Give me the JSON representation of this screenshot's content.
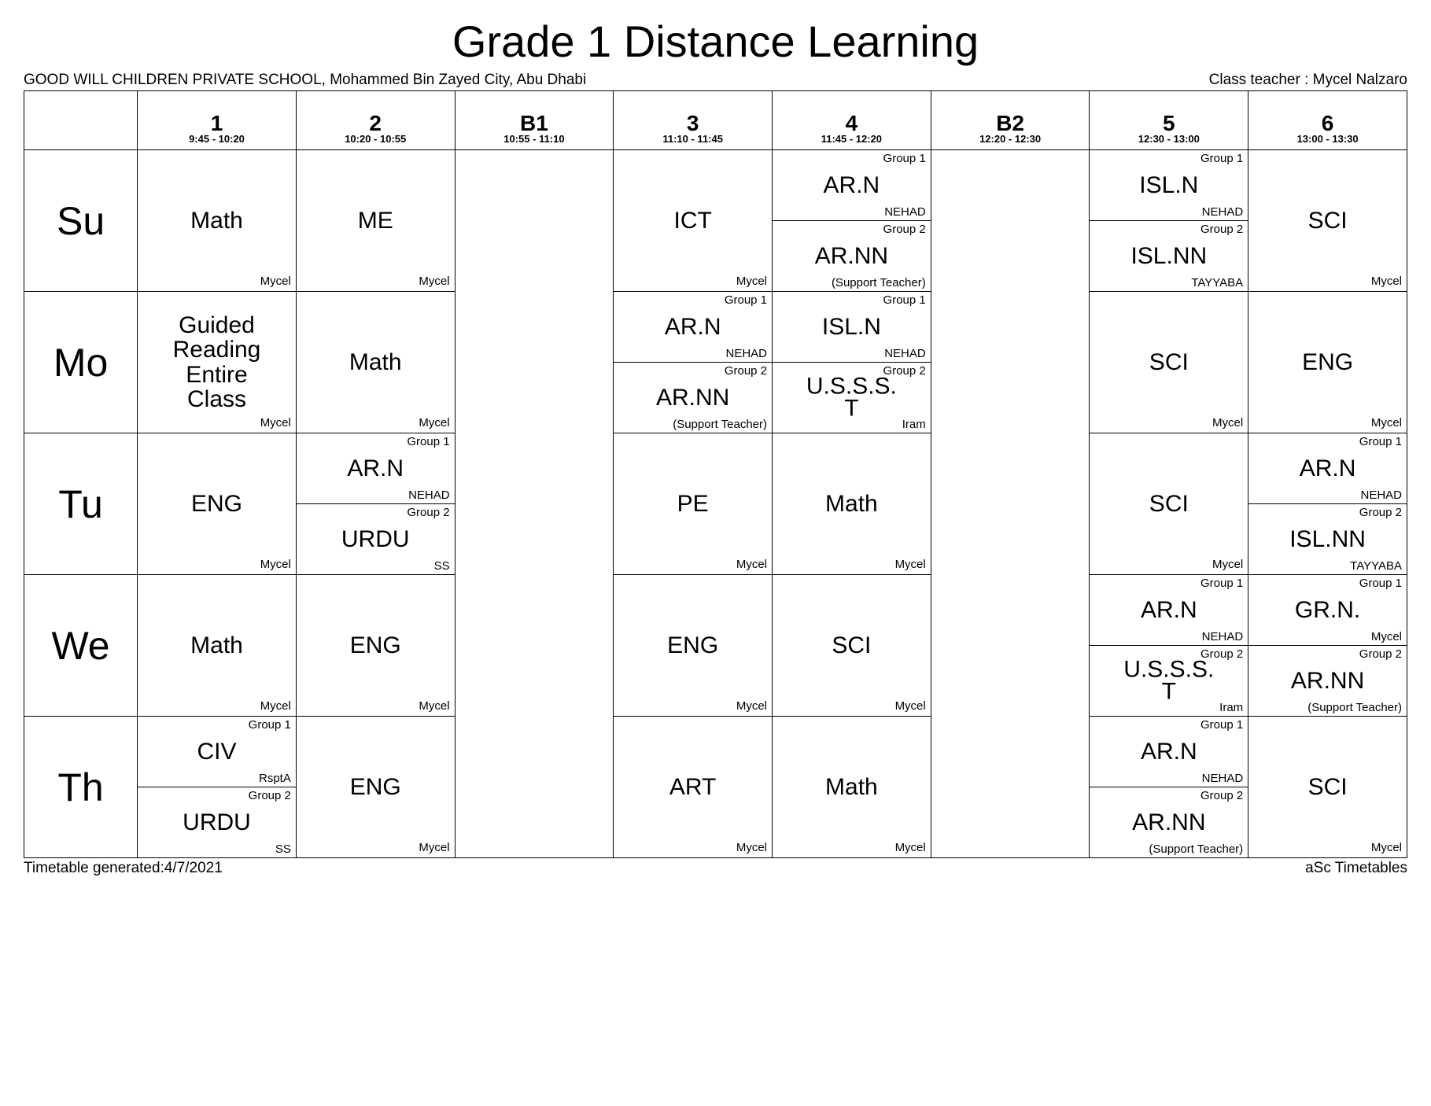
{
  "title": "Grade 1 Distance Learning",
  "school": "GOOD WILL CHILDREN PRIVATE SCHOOL, Mohammed Bin Zayed City, Abu Dhabi",
  "class_teacher_label": "Class teacher : Mycel Nalzaro",
  "footer_left": "Timetable generated:4/7/2021",
  "footer_right": "aSc Timetables",
  "periods": [
    {
      "num": "1",
      "time": "9:45 - 10:20"
    },
    {
      "num": "2",
      "time": "10:20 - 10:55"
    },
    {
      "num": "B1",
      "time": "10:55 - 11:10"
    },
    {
      "num": "3",
      "time": "11:10 - 11:45"
    },
    {
      "num": "4",
      "time": "11:45 - 12:20"
    },
    {
      "num": "B2",
      "time": "12:20 - 12:30"
    },
    {
      "num": "5",
      "time": "12:30 - 13:00"
    },
    {
      "num": "6",
      "time": "13:00 - 13:30"
    }
  ],
  "days": [
    "Su",
    "Mo",
    "Tu",
    "We",
    "Th"
  ],
  "cells": {
    "Su": {
      "1": {
        "type": "single",
        "subj": "Math",
        "teacher": "Mycel"
      },
      "2": {
        "type": "single",
        "subj": "ME",
        "teacher": "Mycel"
      },
      "3": {
        "type": "single",
        "subj": "ICT",
        "teacher": "Mycel"
      },
      "4": {
        "type": "split",
        "g1": {
          "subj": "AR.N",
          "teacher": "NEHAD"
        },
        "g2": {
          "subj": "AR.NN",
          "teacher": "(Support Teacher)"
        }
      },
      "5": {
        "type": "split",
        "g1": {
          "subj": "ISL.N",
          "teacher": "NEHAD"
        },
        "g2": {
          "subj": "ISL.NN",
          "teacher": "TAYYABA"
        }
      },
      "6": {
        "type": "single",
        "subj": "SCI",
        "teacher": "Mycel"
      }
    },
    "Mo": {
      "1": {
        "type": "single",
        "subj": "Guided Reading Entire Class",
        "teacher": "Mycel",
        "multiline": true
      },
      "2": {
        "type": "single",
        "subj": "Math",
        "teacher": "Mycel"
      },
      "3": {
        "type": "split",
        "g1": {
          "subj": "AR.N",
          "teacher": "NEHAD"
        },
        "g2": {
          "subj": "AR.NN",
          "teacher": "(Support Teacher)"
        }
      },
      "4": {
        "type": "split",
        "g1": {
          "subj": "ISL.N",
          "teacher": "NEHAD"
        },
        "g2": {
          "subj": "U.S.S.S.T",
          "teacher": "Iram"
        }
      },
      "5": {
        "type": "single",
        "subj": "SCI",
        "teacher": "Mycel"
      },
      "6": {
        "type": "single",
        "subj": "ENG",
        "teacher": "Mycel"
      }
    },
    "Tu": {
      "1": {
        "type": "single",
        "subj": "ENG",
        "teacher": "Mycel"
      },
      "2": {
        "type": "split",
        "g1": {
          "subj": "AR.N",
          "teacher": "NEHAD"
        },
        "g2": {
          "subj": "URDU",
          "teacher": "SS"
        }
      },
      "3": {
        "type": "single",
        "subj": "PE",
        "teacher": "Mycel"
      },
      "4": {
        "type": "single",
        "subj": "Math",
        "teacher": "Mycel"
      },
      "5": {
        "type": "single",
        "subj": "SCI",
        "teacher": "Mycel"
      },
      "6": {
        "type": "split",
        "g1": {
          "subj": "AR.N",
          "teacher": "NEHAD"
        },
        "g2": {
          "subj": "ISL.NN",
          "teacher": "TAYYABA"
        }
      }
    },
    "We": {
      "1": {
        "type": "single",
        "subj": "Math",
        "teacher": "Mycel"
      },
      "2": {
        "type": "single",
        "subj": "ENG",
        "teacher": "Mycel"
      },
      "3": {
        "type": "single",
        "subj": "ENG",
        "teacher": "Mycel"
      },
      "4": {
        "type": "single",
        "subj": "SCI",
        "teacher": "Mycel"
      },
      "5": {
        "type": "split",
        "g1": {
          "subj": "AR.N",
          "teacher": "NEHAD"
        },
        "g2": {
          "subj": "U.S.S.S.T",
          "teacher": "Iram"
        }
      },
      "6": {
        "type": "split",
        "g1": {
          "subj": "GR.N.",
          "teacher": "Mycel"
        },
        "g2": {
          "subj": "AR.NN",
          "teacher": "(Support Teacher)"
        }
      }
    },
    "Th": {
      "1": {
        "type": "split",
        "g1": {
          "subj": "CIV",
          "teacher": "RsptA"
        },
        "g2": {
          "subj": "URDU",
          "teacher": "SS"
        }
      },
      "2": {
        "type": "single",
        "subj": "ENG",
        "teacher": "Mycel"
      },
      "3": {
        "type": "single",
        "subj": "ART",
        "teacher": "Mycel"
      },
      "4": {
        "type": "single",
        "subj": "Math",
        "teacher": "Mycel"
      },
      "5": {
        "type": "split",
        "g1": {
          "subj": "AR.N",
          "teacher": "NEHAD"
        },
        "g2": {
          "subj": "AR.NN",
          "teacher": "(Support Teacher)"
        }
      },
      "6": {
        "type": "single",
        "subj": "SCI",
        "teacher": "Mycel"
      }
    }
  },
  "group_labels": {
    "g1": "Group 1",
    "g2": "Group 2"
  }
}
